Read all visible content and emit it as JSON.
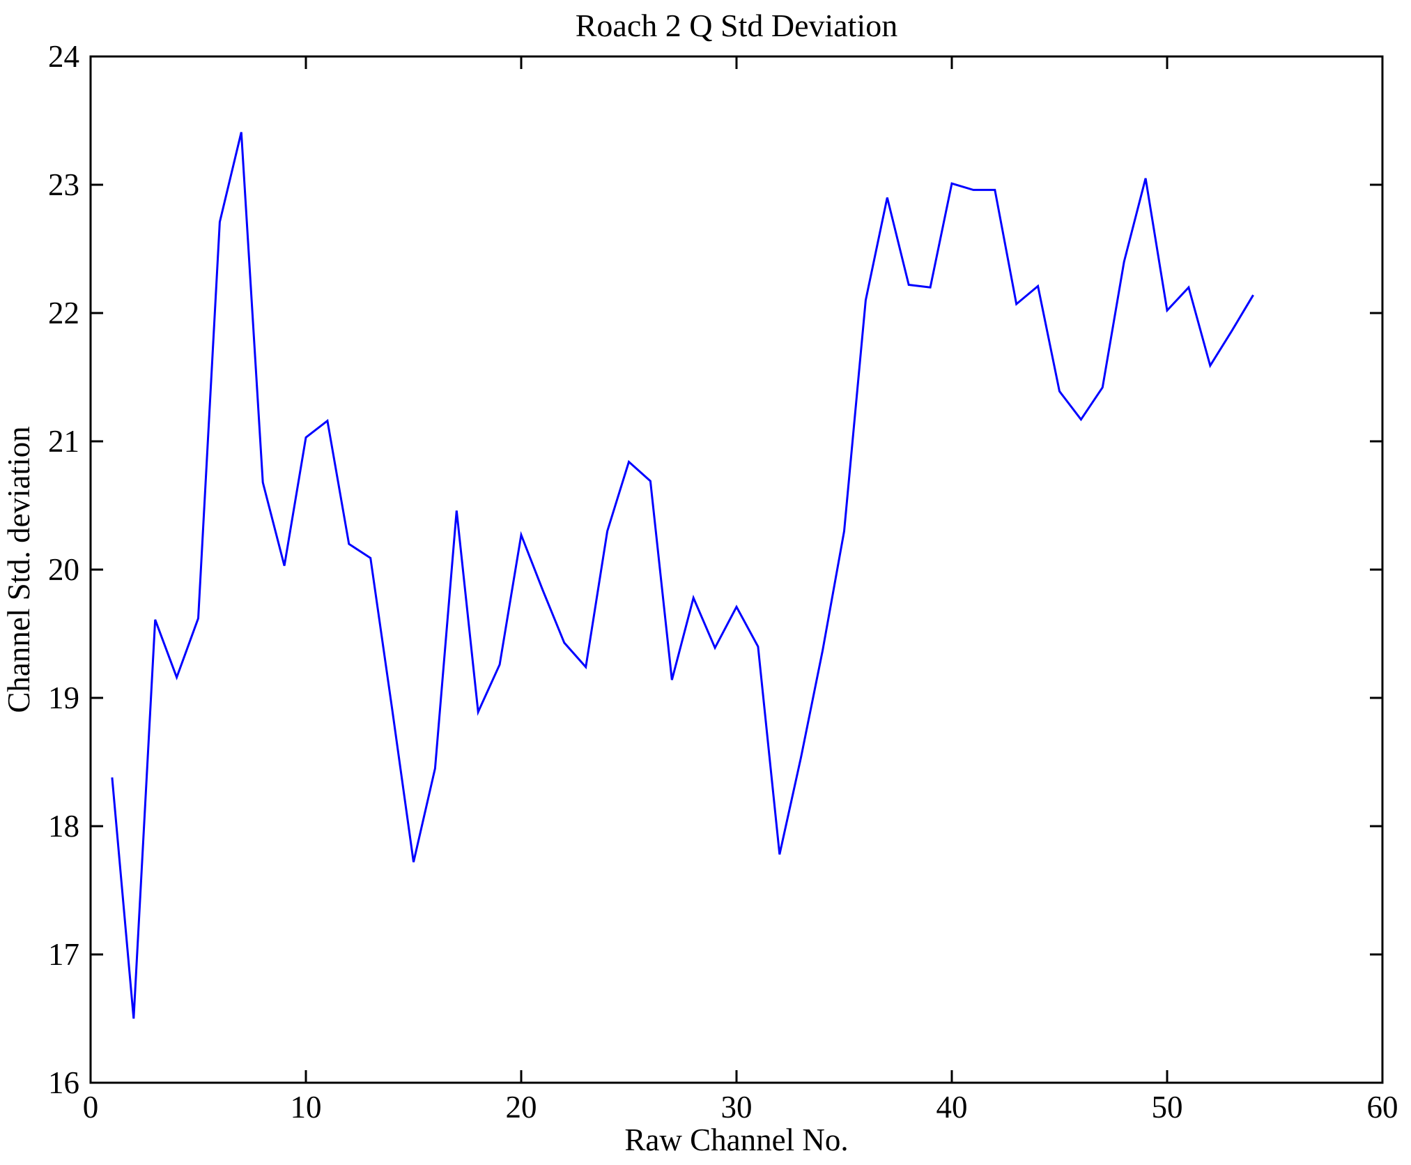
{
  "title": "Roach 2 Q Std Deviation",
  "chart_data": {
    "type": "line",
    "title": "Roach 2 Q Std Deviation",
    "xlabel": "Raw Channel No.",
    "ylabel": "Channel Std. deviation",
    "xlim": [
      0,
      60
    ],
    "ylim": [
      16,
      24
    ],
    "xticks": [
      0,
      10,
      20,
      30,
      40,
      50,
      60
    ],
    "yticks": [
      16,
      17,
      18,
      19,
      20,
      21,
      22,
      23,
      24
    ],
    "grid": false,
    "legend": "none",
    "line_color": "#0000ff",
    "axis_color": "#000000",
    "background_color": "#ffffff",
    "series": [
      {
        "name": "Channel Std. deviation",
        "x": [
          1,
          2,
          3,
          4,
          5,
          6,
          7,
          8,
          9,
          10,
          11,
          12,
          13,
          14,
          15,
          16,
          17,
          18,
          19,
          20,
          21,
          22,
          23,
          24,
          25,
          26,
          27,
          28,
          29,
          30,
          31,
          32,
          33,
          34,
          35,
          36,
          37,
          38,
          39,
          40,
          41,
          42,
          43,
          44,
          45,
          46,
          47,
          48,
          49,
          50,
          51,
          52,
          53,
          54
        ],
        "y": [
          18.38,
          16.5,
          19.61,
          19.16,
          19.62,
          22.71,
          23.41,
          20.68,
          20.03,
          21.03,
          21.16,
          20.2,
          20.09,
          18.92,
          17.72,
          18.45,
          20.46,
          18.89,
          19.26,
          20.27,
          19.84,
          19.43,
          19.24,
          20.3,
          20.84,
          20.69,
          19.14,
          19.78,
          19.39,
          19.71,
          19.4,
          17.78,
          18.54,
          19.37,
          20.3,
          22.1,
          22.9,
          22.22,
          22.2,
          23.01,
          22.96,
          22.96,
          22.07,
          22.21,
          21.39,
          21.17,
          21.42,
          22.4,
          23.05,
          22.02,
          22.2,
          21.59,
          21.86,
          22.14
        ]
      }
    ]
  }
}
